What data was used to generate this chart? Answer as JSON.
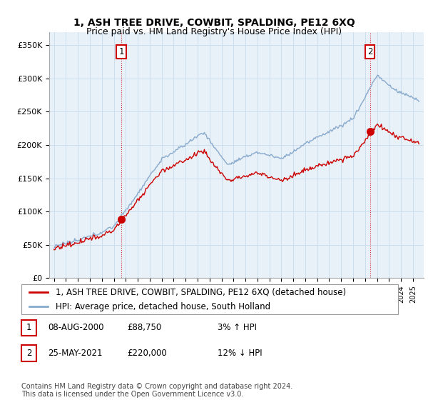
{
  "title": "1, ASH TREE DRIVE, COWBIT, SPALDING, PE12 6XQ",
  "subtitle": "Price paid vs. HM Land Registry's House Price Index (HPI)",
  "ylim": [
    0,
    370000
  ],
  "yticks": [
    0,
    50000,
    100000,
    150000,
    200000,
    250000,
    300000,
    350000
  ],
  "ytick_labels": [
    "£0",
    "£50K",
    "£100K",
    "£150K",
    "£200K",
    "£250K",
    "£300K",
    "£350K"
  ],
  "sale_t1": 2000.622,
  "sale_t2": 2021.411,
  "sale_prices": [
    88750,
    220000
  ],
  "sale_labels": [
    "1",
    "2"
  ],
  "legend_property": "1, ASH TREE DRIVE, COWBIT, SPALDING, PE12 6XQ (detached house)",
  "legend_hpi": "HPI: Average price, detached house, South Holland",
  "property_color": "#cc0000",
  "hpi_color": "#88aacc",
  "sale_marker_color": "#cc0000",
  "vline_color": "#cc0000",
  "grid_color": "#ccddee",
  "chart_bg_color": "#e8f0f8",
  "background_color": "#ffffff",
  "table_rows": [
    [
      "1",
      "08-AUG-2000",
      "£88,750",
      "3% ↑ HPI"
    ],
    [
      "2",
      "25-MAY-2021",
      "£220,000",
      "12% ↓ HPI"
    ]
  ],
  "footnote": "Contains HM Land Registry data © Crown copyright and database right 2024.\nThis data is licensed under the Open Government Licence v3.0.",
  "title_fontsize": 10,
  "tick_fontsize": 8,
  "legend_fontsize": 8.5,
  "table_fontsize": 8.5,
  "footnote_fontsize": 7
}
